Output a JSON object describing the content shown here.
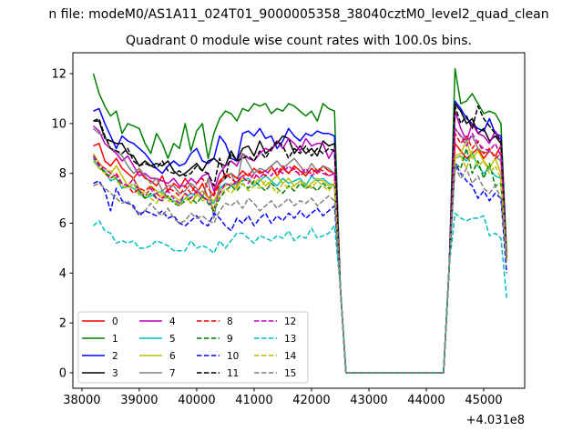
{
  "chart_data": {
    "type": "line",
    "suptitle": "n file: modeM0/AS1A11_024T01_9000005358_38040cztM0_level2_quad_clean",
    "title": "Quadrant 0 module wise count rates with 100.0s bins.",
    "xlabel": "",
    "ylabel": "",
    "x_offset_label": "+4.031e8",
    "xlim": [
      37843,
      45714
    ],
    "ylim": [
      -0.62,
      12.84
    ],
    "xticks": [
      38000,
      39000,
      40000,
      41000,
      42000,
      43000,
      44000,
      45000
    ],
    "yticks": [
      0,
      2,
      4,
      6,
      8,
      10,
      12
    ],
    "x_step": 100,
    "legend_placement": "lower-left",
    "legend_columns": 4,
    "gap_segment": {
      "x_start": 42500,
      "y": [
        3.5,
        0,
        0,
        0,
        0,
        0,
        0,
        0,
        0,
        0,
        0,
        0,
        0,
        0,
        0,
        0,
        0,
        0,
        0,
        4.3
      ]
    },
    "series": [
      {
        "name": "0",
        "color": "#ff0000",
        "dashed": false,
        "pre": [
          9.1,
          9.2,
          8.5,
          8.3,
          8.6,
          8.2,
          8.0,
          7.8,
          8.1,
          7.8,
          7.7,
          7.5,
          7.9,
          7.3,
          7.6,
          7.4,
          7.8,
          7.5,
          7.2,
          7.6,
          7.0,
          7.2,
          7.7,
          7.9,
          8.0,
          7.8,
          8.1,
          7.9,
          8.2,
          8.0,
          8.1,
          8.3,
          7.9,
          8.2,
          8.0,
          8.3,
          8.1,
          7.9,
          8.2,
          8.0,
          8.3,
          8.1,
          8.0
        ],
        "post": [
          9.2,
          8.9,
          8.6,
          8.8,
          9.0,
          8.6,
          8.9,
          8.7,
          9.1,
          4.5
        ]
      },
      {
        "name": "1",
        "color": "#008000",
        "dashed": false,
        "pre": [
          12.0,
          11.2,
          10.7,
          10.3,
          10.5,
          9.6,
          10.0,
          9.9,
          9.8,
          9.2,
          8.8,
          9.6,
          9.2,
          8.6,
          9.2,
          9.0,
          10.0,
          8.9,
          9.7,
          10.0,
          8.6,
          9.6,
          10.2,
          10.5,
          10.4,
          10.1,
          10.6,
          10.5,
          10.8,
          10.7,
          10.8,
          10.4,
          10.6,
          10.5,
          10.8,
          10.7,
          10.5,
          10.3,
          10.5,
          10.1,
          10.8,
          10.6,
          10.5
        ],
        "post": [
          12.2,
          10.8,
          10.9,
          11.2,
          10.8,
          10.4,
          10.5,
          10.4,
          10.0,
          4.8
        ]
      },
      {
        "name": "2",
        "color": "#0000ff",
        "dashed": false,
        "pre": [
          10.5,
          10.6,
          10.0,
          9.5,
          9.0,
          9.5,
          9.3,
          9.2,
          9.0,
          8.8,
          8.5,
          8.2,
          8.0,
          8.3,
          8.5,
          8.3,
          8.4,
          8.8,
          9.0,
          8.5,
          8.4,
          8.6,
          9.5,
          9.2,
          8.6,
          8.5,
          9.6,
          9.7,
          9.5,
          9.8,
          9.4,
          9.5,
          9.0,
          9.3,
          9.8,
          9.5,
          9.3,
          9.6,
          9.5,
          9.7,
          9.6,
          9.6,
          9.5
        ],
        "post": [
          10.9,
          10.6,
          10.2,
          10.0,
          9.8,
          9.7,
          10.2,
          9.6,
          9.5,
          4.5
        ]
      },
      {
        "name": "3",
        "color": "#000000",
        "dashed": false,
        "pre": [
          10.1,
          10.1,
          9.4,
          9.3,
          9.2,
          9.2,
          8.8,
          8.7,
          8.3,
          8.5,
          8.3,
          8.4,
          8.3,
          8.5,
          8.1,
          7.9,
          8.0,
          8.2,
          8.4,
          8.1,
          8.5,
          8.6,
          8.4,
          8.3,
          8.9,
          8.5,
          9.0,
          9.1,
          8.7,
          9.3,
          8.8,
          9.0,
          9.2,
          9.5,
          9.4,
          8.8,
          9.1,
          8.8,
          9.0,
          8.7,
          9.3,
          9.1,
          9.2
        ],
        "post": [
          10.8,
          10.5,
          10.0,
          10.2,
          9.6,
          9.8,
          9.3,
          9.5,
          9.2,
          4.5
        ]
      },
      {
        "name": "4",
        "color": "#bf00bf",
        "dashed": false,
        "pre": [
          9.9,
          9.7,
          9.2,
          9.0,
          8.8,
          8.5,
          8.7,
          8.3,
          7.9,
          8.0,
          7.8,
          7.8,
          7.7,
          7.6,
          7.8,
          7.5,
          7.5,
          7.8,
          7.6,
          7.9,
          8.0,
          7.3,
          8.0,
          8.3,
          8.5,
          8.3,
          8.8,
          8.6,
          8.5,
          8.8,
          9.0,
          8.9,
          9.3,
          9.0,
          9.4,
          9.2,
          8.9,
          9.4,
          9.1,
          9.2,
          9.2,
          8.6,
          9.0
        ],
        "post": [
          10.5,
          9.8,
          9.3,
          10.0,
          9.6,
          9.5,
          9.2,
          9.7,
          9.3,
          4.5
        ]
      },
      {
        "name": "5",
        "color": "#00bfbf",
        "dashed": false,
        "pre": [
          8.6,
          8.2,
          8.1,
          7.7,
          7.8,
          7.4,
          7.5,
          7.4,
          7.2,
          7.0,
          7.1,
          7.2,
          7.3,
          7.0,
          6.9,
          6.8,
          7.0,
          7.2,
          7.1,
          7.3,
          7.0,
          6.8,
          7.4,
          7.6,
          7.5,
          7.6,
          7.7,
          7.8,
          7.5,
          7.7,
          7.9,
          7.7,
          7.5,
          7.8,
          7.6,
          7.7,
          7.8,
          7.5,
          7.9,
          7.7,
          7.8,
          7.6,
          7.5
        ],
        "post": [
          8.6,
          8.7,
          8.5,
          8.8,
          8.3,
          8.0,
          8.2,
          7.9,
          7.8,
          4.5
        ]
      },
      {
        "name": "6",
        "color": "#bfbf00",
        "dashed": false,
        "pre": [
          8.8,
          8.4,
          8.2,
          8.0,
          8.3,
          7.9,
          7.5,
          7.8,
          7.4,
          7.0,
          7.5,
          7.3,
          7.2,
          7.0,
          7.1,
          6.9,
          7.2,
          6.8,
          7.1,
          7.3,
          7.0,
          6.9,
          7.3,
          7.5,
          7.6,
          7.4,
          7.8,
          7.7,
          7.6,
          7.8,
          7.5,
          7.7,
          7.9,
          7.6,
          7.8,
          7.5,
          7.7,
          7.4,
          7.6,
          7.8,
          7.7,
          7.5,
          7.6
        ],
        "post": [
          8.7,
          8.8,
          9.3,
          8.6,
          8.9,
          8.5,
          8.2,
          8.6,
          8.0,
          4.5
        ]
      },
      {
        "name": "7",
        "color": "#808080",
        "dashed": false,
        "pre": [
          9.8,
          9.6,
          9.5,
          9.0,
          8.9,
          8.7,
          8.3,
          8.0,
          8.2,
          7.9,
          7.6,
          7.8,
          7.3,
          7.5,
          7.5,
          7.2,
          7.3,
          7.6,
          7.4,
          7.0,
          7.8,
          6.2,
          7.6,
          7.8,
          8.0,
          7.5,
          8.8,
          8.4,
          8.0,
          8.2,
          8.1,
          8.3,
          8.5,
          8.2,
          8.4,
          8.6,
          8.3,
          8.0,
          8.4,
          8.1,
          8.3,
          8.2,
          8.0
        ],
        "post": [
          9.8,
          9.5,
          9.3,
          9.5,
          9.0,
          8.8,
          8.9,
          8.7,
          8.5,
          4.5
        ]
      },
      {
        "name": "8",
        "color": "#ff0000",
        "dashed": true,
        "pre": [
          8.7,
          8.4,
          8.0,
          7.8,
          8.0,
          7.6,
          7.5,
          7.2,
          7.4,
          7.3,
          7.5,
          7.2,
          7.0,
          7.4,
          7.3,
          7.1,
          7.5,
          7.2,
          7.6,
          7.8,
          7.4,
          7.1,
          7.6,
          8.0,
          7.8,
          7.6,
          7.9,
          8.0,
          7.8,
          8.1,
          7.9,
          8.2,
          8.0,
          8.3,
          8.0,
          8.2,
          7.9,
          8.1,
          8.0,
          8.2,
          8.1,
          7.9,
          8.0
        ],
        "post": [
          9.6,
          9.2,
          9.5,
          9.0,
          9.3,
          8.8,
          9.0,
          8.6,
          8.8,
          4.5
        ]
      },
      {
        "name": "9",
        "color": "#008000",
        "dashed": true,
        "pre": [
          8.7,
          8.3,
          8.0,
          7.9,
          7.8,
          7.5,
          7.4,
          7.6,
          7.3,
          7.0,
          7.2,
          7.0,
          6.9,
          7.1,
          6.8,
          6.7,
          6.9,
          7.0,
          6.8,
          7.1,
          6.8,
          6.5,
          7.0,
          7.3,
          7.5,
          7.3,
          7.6,
          7.4,
          7.7,
          7.5,
          7.3,
          7.6,
          7.4,
          7.2,
          7.5,
          7.3,
          7.6,
          7.4,
          7.5,
          7.3,
          7.6,
          7.4,
          7.5
        ],
        "post": [
          8.4,
          8.2,
          9.0,
          8.0,
          8.5,
          7.8,
          8.4,
          7.5,
          7.6,
          4.5
        ]
      },
      {
        "name": "10",
        "color": "#0000ff",
        "dashed": true,
        "pre": [
          7.6,
          7.7,
          7.3,
          6.5,
          7.4,
          6.9,
          6.8,
          6.7,
          6.3,
          6.5,
          6.4,
          6.3,
          6.5,
          6.2,
          6.3,
          6.0,
          5.9,
          6.1,
          6.3,
          6.0,
          5.9,
          6.4,
          6.2,
          5.9,
          5.7,
          6.2,
          6.0,
          6.3,
          5.9,
          6.2,
          6.4,
          6.0,
          6.3,
          6.1,
          6.4,
          6.2,
          6.5,
          6.2,
          6.4,
          6.6,
          6.3,
          6.5,
          6.7
        ],
        "post": [
          8.4,
          8.0,
          7.7,
          7.5,
          7.0,
          7.3,
          6.9,
          7.2,
          7.0,
          4.0
        ]
      },
      {
        "name": "11",
        "color": "#000000",
        "dashed": true,
        "pre": [
          10.1,
          10.2,
          9.5,
          9.0,
          8.9,
          8.8,
          9.0,
          8.5,
          8.3,
          8.4,
          8.3,
          8.2,
          8.5,
          8.1,
          8.0,
          8.1,
          7.9,
          8.0,
          8.3,
          8.1,
          8.0,
          7.5,
          8.6,
          7.8,
          8.8,
          8.5,
          8.6,
          8.7,
          8.5,
          8.9,
          8.6,
          9.0,
          9.3,
          9.1,
          8.6,
          9.0,
          8.8,
          9.1,
          8.7,
          9.0,
          8.8,
          9.0,
          8.9
        ],
        "post": [
          10.7,
          10.0,
          10.3,
          9.8,
          10.7,
          10.2,
          9.9,
          9.6,
          9.3,
          4.5
        ]
      },
      {
        "name": "12",
        "color": "#bf00bf",
        "dashed": true,
        "pre": [
          8.7,
          8.3,
          8.2,
          8.0,
          7.9,
          7.6,
          7.5,
          7.8,
          7.3,
          7.1,
          7.4,
          7.0,
          6.9,
          7.3,
          7.0,
          6.8,
          7.2,
          7.0,
          7.3,
          7.1,
          6.9,
          6.6,
          7.2,
          7.6,
          7.5,
          7.7,
          7.9,
          7.6,
          8.0,
          7.8,
          8.1,
          7.9,
          8.2,
          8.0,
          8.3,
          8.1,
          8.0,
          8.2,
          7.9,
          8.1,
          8.0,
          7.9,
          8.0
        ],
        "post": [
          9.8,
          9.5,
          9.1,
          9.6,
          9.2,
          9.0,
          8.9,
          9.2,
          8.7,
          4.5
        ]
      },
      {
        "name": "13",
        "color": "#00bfbf",
        "dashed": true,
        "pre": [
          5.9,
          6.1,
          5.7,
          5.6,
          5.2,
          5.3,
          5.2,
          5.3,
          5.0,
          5.0,
          5.1,
          5.3,
          5.2,
          5.1,
          4.9,
          4.9,
          4.9,
          5.3,
          5.0,
          5.1,
          5.0,
          4.8,
          5.3,
          5.0,
          5.3,
          5.6,
          5.6,
          5.4,
          5.2,
          5.5,
          5.4,
          5.3,
          5.5,
          5.4,
          5.7,
          5.3,
          5.5,
          5.4,
          5.8,
          5.4,
          5.5,
          5.6,
          5.9
        ],
        "post": [
          6.4,
          6.2,
          6.1,
          6.2,
          6.2,
          6.3,
          5.5,
          5.6,
          5.4,
          3.0
        ]
      },
      {
        "name": "14",
        "color": "#bfbf00",
        "dashed": true,
        "pre": [
          8.5,
          8.2,
          8.0,
          8.1,
          7.7,
          7.5,
          7.4,
          7.6,
          7.1,
          7.3,
          7.0,
          6.8,
          7.2,
          6.9,
          6.9,
          6.7,
          7.0,
          6.8,
          7.2,
          6.9,
          7.0,
          6.6,
          7.1,
          7.4,
          7.2,
          7.5,
          7.6,
          7.3,
          7.5,
          7.4,
          7.7,
          7.5,
          7.2,
          7.6,
          7.4,
          7.5,
          7.7,
          7.6,
          7.4,
          7.7,
          7.5,
          7.3,
          7.6
        ],
        "post": [
          8.6,
          8.7,
          8.2,
          8.9,
          8.3,
          8.5,
          8.0,
          8.3,
          7.8,
          4.5
        ]
      },
      {
        "name": "15",
        "color": "#808080",
        "dashed": true,
        "pre": [
          7.5,
          7.6,
          7.4,
          7.2,
          7.0,
          6.8,
          6.9,
          6.6,
          6.4,
          6.5,
          6.8,
          6.5,
          6.3,
          6.6,
          6.2,
          6.0,
          6.1,
          6.4,
          6.2,
          6.3,
          6.1,
          6.0,
          6.5,
          6.8,
          6.7,
          6.9,
          6.6,
          7.0,
          6.8,
          6.5,
          6.7,
          6.9,
          6.6,
          6.8,
          7.0,
          6.7,
          6.9,
          6.8,
          7.0,
          6.7,
          6.9,
          7.1,
          6.9
        ],
        "post": [
          8.3,
          7.8,
          8.2,
          7.6,
          7.9,
          7.4,
          7.2,
          7.5,
          7.0,
          4.5
        ]
      }
    ],
    "pre_x_start": 38200,
    "post_x_start": 44500
  }
}
